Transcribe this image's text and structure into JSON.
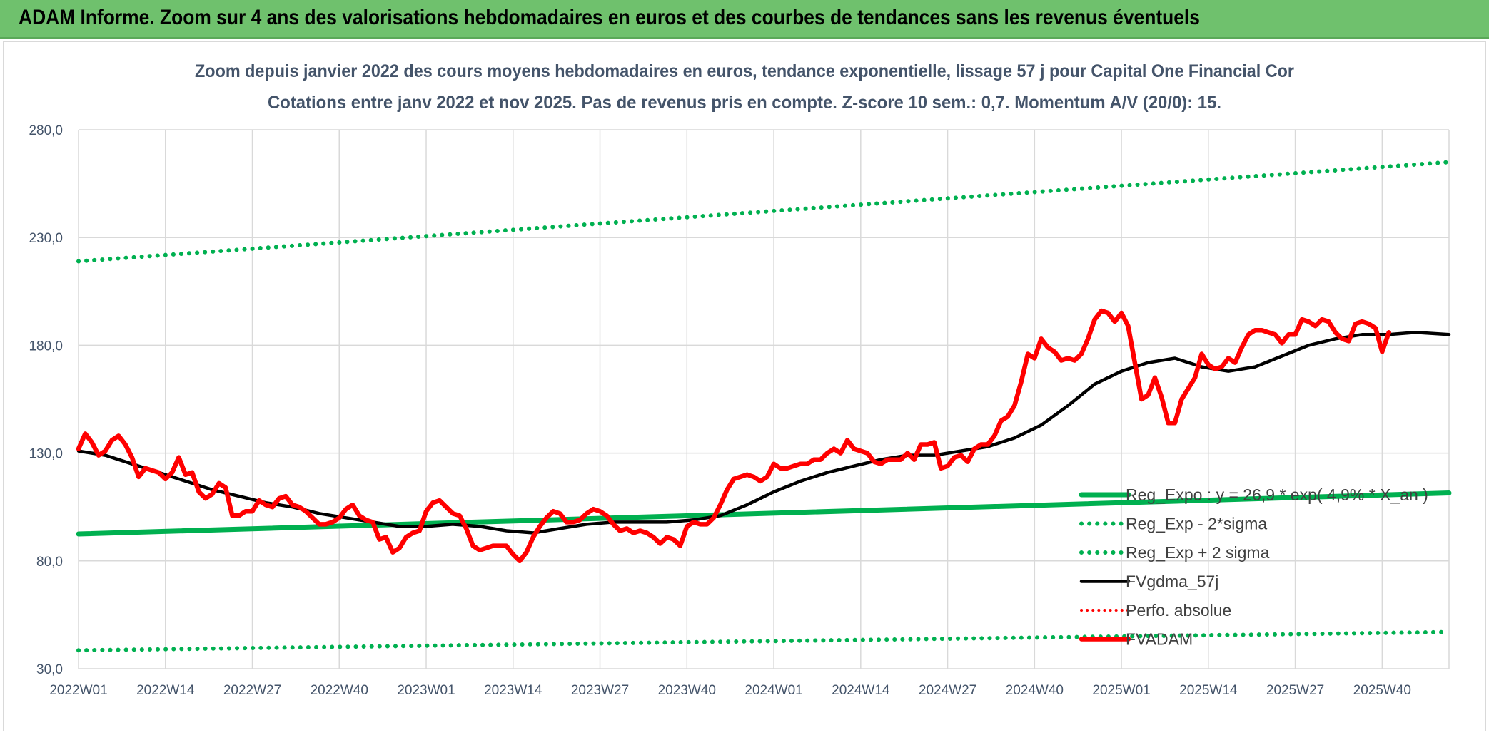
{
  "banner": {
    "title": "ADAM Informe. Zoom sur 4 ans des valorisations hebdomadaires en euros et des courbes de tendances sans les revenus éventuels"
  },
  "chart_data": {
    "type": "line",
    "title": "Zoom depuis janvier 2022 des cours moyens hebdomadaires en euros, tendance exponentielle, lissage 57 j pour Capital One Financial Cor",
    "subtitle": "Cotations entre janv 2022 et nov 2025. Pas de revenus pris en compte. Z-score 10 sem.: 0,7. Momentum A/V (20/0): 15.",
    "xlabel": "",
    "ylabel": "",
    "ylim": [
      30,
      290
    ],
    "yticks": [
      "30,0",
      "80,0",
      "130,0",
      "180,0",
      "230,0",
      "280,0"
    ],
    "ytick_values": [
      30,
      80,
      130,
      180,
      230,
      280
    ],
    "xticks": [
      "2022W01",
      "2022W14",
      "2022W27",
      "2022W40",
      "2023W01",
      "2023W14",
      "2023W27",
      "2023W40",
      "2024W01",
      "2024W14",
      "2024W27",
      "2024W40",
      "2025W01",
      "2025W14",
      "2025W27",
      "2025W40"
    ],
    "xtick_weeks": [
      0,
      13,
      26,
      39,
      52,
      65,
      78,
      91,
      104,
      117,
      130,
      143,
      156,
      169,
      182,
      195
    ],
    "n_weeks": 205,
    "grid": true,
    "legend_position": "bottom-right",
    "colors": {
      "reg_expo": "#00b050",
      "sigma_bands": "#00b050",
      "fvgdma": "#000000",
      "perfo": "#ff0000",
      "fvadam": "#ff0000",
      "grid": "#d9d9d9",
      "axis_text": "#44546a"
    },
    "series": [
      {
        "name": "Reg_Expo : y = 26,9 * exp( 4,9% * X_an )",
        "style": "solid-thick",
        "points": [
          [
            0,
            92.5
          ],
          [
            205,
            111.5
          ]
        ]
      },
      {
        "name": "Reg_Exp - 2*sigma",
        "style": "dotted",
        "points": [
          [
            0,
            38.5
          ],
          [
            205,
            47
          ]
        ]
      },
      {
        "name": "Reg_Exp + 2 sigma",
        "style": "dotted",
        "points": [
          [
            0,
            219
          ],
          [
            205,
            265
          ]
        ]
      },
      {
        "name": "FVgdma_57j",
        "style": "solid",
        "points": [
          [
            0,
            131
          ],
          [
            4,
            129
          ],
          [
            8,
            125
          ],
          [
            12,
            121
          ],
          [
            16,
            117
          ],
          [
            20,
            113
          ],
          [
            24,
            110
          ],
          [
            28,
            107
          ],
          [
            32,
            105
          ],
          [
            36,
            102
          ],
          [
            40,
            100
          ],
          [
            44,
            98
          ],
          [
            48,
            96
          ],
          [
            52,
            96
          ],
          [
            56,
            97
          ],
          [
            60,
            96
          ],
          [
            64,
            94
          ],
          [
            68,
            93
          ],
          [
            72,
            95
          ],
          [
            76,
            97
          ],
          [
            80,
            98
          ],
          [
            84,
            98
          ],
          [
            88,
            98
          ],
          [
            92,
            99
          ],
          [
            96,
            101
          ],
          [
            100,
            106
          ],
          [
            104,
            112
          ],
          [
            108,
            117
          ],
          [
            112,
            121
          ],
          [
            116,
            124
          ],
          [
            120,
            127
          ],
          [
            124,
            129
          ],
          [
            128,
            129
          ],
          [
            132,
            131
          ],
          [
            136,
            133
          ],
          [
            140,
            137
          ],
          [
            144,
            143
          ],
          [
            148,
            152
          ],
          [
            152,
            162
          ],
          [
            156,
            168
          ],
          [
            160,
            172
          ],
          [
            164,
            174
          ],
          [
            168,
            170
          ],
          [
            172,
            168
          ],
          [
            176,
            170
          ],
          [
            180,
            175
          ],
          [
            184,
            180
          ],
          [
            188,
            183
          ],
          [
            192,
            185
          ],
          [
            196,
            185
          ],
          [
            200,
            186
          ],
          [
            205,
            185
          ]
        ]
      },
      {
        "name": "Perfo. absolue",
        "style": "dotted",
        "points": []
      },
      {
        "name": "FVADAM",
        "style": "solid-thick",
        "points": [
          [
            0,
            132
          ],
          [
            1,
            139
          ],
          [
            2,
            135
          ],
          [
            3,
            129
          ],
          [
            4,
            131
          ],
          [
            5,
            136
          ],
          [
            6,
            138
          ],
          [
            7,
            134
          ],
          [
            8,
            128
          ],
          [
            9,
            119
          ],
          [
            10,
            123
          ],
          [
            11,
            122
          ],
          [
            12,
            121
          ],
          [
            13,
            118
          ],
          [
            14,
            121
          ],
          [
            15,
            128
          ],
          [
            16,
            120
          ],
          [
            17,
            121
          ],
          [
            18,
            112
          ],
          [
            19,
            109
          ],
          [
            20,
            111
          ],
          [
            21,
            116
          ],
          [
            22,
            114
          ],
          [
            23,
            101
          ],
          [
            24,
            101
          ],
          [
            25,
            103
          ],
          [
            26,
            103
          ],
          [
            27,
            108
          ],
          [
            28,
            106
          ],
          [
            29,
            105
          ],
          [
            30,
            109
          ],
          [
            31,
            110
          ],
          [
            32,
            106
          ],
          [
            33,
            105
          ],
          [
            34,
            103
          ],
          [
            35,
            100
          ],
          [
            36,
            97
          ],
          [
            37,
            97
          ],
          [
            38,
            98
          ],
          [
            39,
            100
          ],
          [
            40,
            104
          ],
          [
            41,
            106
          ],
          [
            42,
            101
          ],
          [
            43,
            99
          ],
          [
            44,
            98
          ],
          [
            45,
            90
          ],
          [
            46,
            91
          ],
          [
            47,
            84
          ],
          [
            48,
            86
          ],
          [
            49,
            91
          ],
          [
            50,
            93
          ],
          [
            51,
            94
          ],
          [
            52,
            103
          ],
          [
            53,
            107
          ],
          [
            54,
            108
          ],
          [
            55,
            105
          ],
          [
            56,
            102
          ],
          [
            57,
            101
          ],
          [
            58,
            95
          ],
          [
            59,
            87
          ],
          [
            60,
            85
          ],
          [
            61,
            86
          ],
          [
            62,
            87
          ],
          [
            63,
            87
          ],
          [
            64,
            87
          ],
          [
            65,
            83
          ],
          [
            66,
            80
          ],
          [
            67,
            84
          ],
          [
            68,
            91
          ],
          [
            69,
            96
          ],
          [
            70,
            100
          ],
          [
            71,
            103
          ],
          [
            72,
            102
          ],
          [
            73,
            98
          ],
          [
            74,
            98
          ],
          [
            75,
            99
          ],
          [
            76,
            102
          ],
          [
            77,
            104
          ],
          [
            78,
            103
          ],
          [
            79,
            101
          ],
          [
            80,
            97
          ],
          [
            81,
            94
          ],
          [
            82,
            95
          ],
          [
            83,
            93
          ],
          [
            84,
            94
          ],
          [
            85,
            93
          ],
          [
            86,
            91
          ],
          [
            87,
            88
          ],
          [
            88,
            91
          ],
          [
            89,
            90
          ],
          [
            90,
            87
          ],
          [
            91,
            96
          ],
          [
            92,
            98
          ],
          [
            93,
            97
          ],
          [
            94,
            97
          ],
          [
            95,
            100
          ],
          [
            96,
            106
          ],
          [
            97,
            113
          ],
          [
            98,
            118
          ],
          [
            99,
            119
          ],
          [
            100,
            120
          ],
          [
            101,
            119
          ],
          [
            102,
            117
          ],
          [
            103,
            119
          ],
          [
            104,
            125
          ],
          [
            105,
            123
          ],
          [
            106,
            123
          ],
          [
            107,
            124
          ],
          [
            108,
            125
          ],
          [
            109,
            125
          ],
          [
            110,
            127
          ],
          [
            111,
            127
          ],
          [
            112,
            130
          ],
          [
            113,
            132
          ],
          [
            114,
            130
          ],
          [
            115,
            136
          ],
          [
            116,
            132
          ],
          [
            117,
            131
          ],
          [
            118,
            130
          ],
          [
            119,
            126
          ],
          [
            120,
            125
          ],
          [
            121,
            127
          ],
          [
            122,
            127
          ],
          [
            123,
            127
          ],
          [
            124,
            130
          ],
          [
            125,
            127
          ],
          [
            126,
            134
          ],
          [
            127,
            134
          ],
          [
            128,
            135
          ],
          [
            129,
            123
          ],
          [
            130,
            124
          ],
          [
            131,
            128
          ],
          [
            132,
            129
          ],
          [
            133,
            126
          ],
          [
            134,
            132
          ],
          [
            135,
            134
          ],
          [
            136,
            134
          ],
          [
            137,
            138
          ],
          [
            138,
            145
          ],
          [
            139,
            147
          ],
          [
            140,
            152
          ],
          [
            141,
            163
          ],
          [
            142,
            176
          ],
          [
            143,
            174
          ],
          [
            144,
            183
          ],
          [
            145,
            179
          ],
          [
            146,
            177
          ],
          [
            147,
            173
          ],
          [
            148,
            174
          ],
          [
            149,
            173
          ],
          [
            150,
            176
          ],
          [
            151,
            183
          ],
          [
            152,
            192
          ],
          [
            153,
            196
          ],
          [
            154,
            195
          ],
          [
            155,
            191
          ],
          [
            156,
            195
          ],
          [
            157,
            189
          ],
          [
            158,
            172
          ],
          [
            159,
            155
          ],
          [
            160,
            157
          ],
          [
            161,
            165
          ],
          [
            162,
            156
          ],
          [
            163,
            144
          ],
          [
            164,
            144
          ],
          [
            165,
            155
          ],
          [
            166,
            160
          ],
          [
            167,
            165
          ],
          [
            168,
            176
          ],
          [
            169,
            171
          ],
          [
            170,
            169
          ],
          [
            171,
            170
          ],
          [
            172,
            174
          ],
          [
            173,
            172
          ],
          [
            174,
            179
          ],
          [
            175,
            185
          ],
          [
            176,
            187
          ],
          [
            177,
            187
          ],
          [
            178,
            186
          ],
          [
            179,
            185
          ],
          [
            180,
            181
          ],
          [
            181,
            185
          ],
          [
            182,
            185
          ],
          [
            183,
            192
          ],
          [
            184,
            191
          ],
          [
            185,
            189
          ],
          [
            186,
            192
          ],
          [
            187,
            191
          ],
          [
            188,
            186
          ],
          [
            189,
            183
          ],
          [
            190,
            182
          ],
          [
            191,
            190
          ],
          [
            192,
            191
          ],
          [
            193,
            190
          ],
          [
            194,
            188
          ],
          [
            195,
            177
          ],
          [
            196,
            186
          ]
        ]
      }
    ]
  }
}
